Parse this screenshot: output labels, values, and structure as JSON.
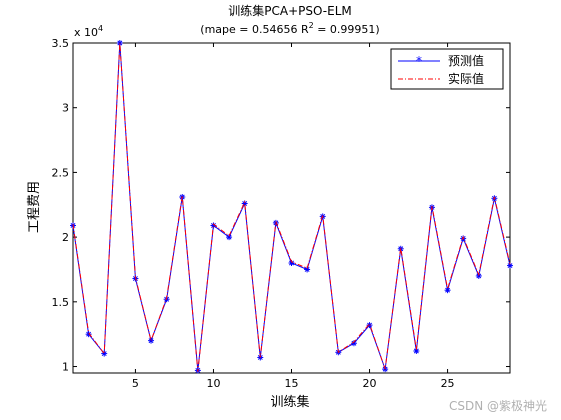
{
  "chart_data": {
    "type": "line",
    "title": "训练集PCA+PSO-ELM",
    "subtitle_prefix": "(mape = 0.54656 R",
    "subtitle_sup": "2",
    "subtitle_suffix": " = 0.99951)",
    "xlabel": "训练集",
    "ylabel": "工程费用",
    "y_exponent_prefix": "x 10",
    "y_exponent_power": "4",
    "xlim": [
      1,
      29
    ],
    "ylim": [
      0.95,
      3.5
    ],
    "xticks": [
      5,
      10,
      15,
      20,
      25
    ],
    "yticks": [
      1,
      1.5,
      2,
      2.5,
      3,
      3.5
    ],
    "ytick_labels": [
      "1",
      "1.5",
      "2",
      "2.5",
      "3",
      "3.5"
    ],
    "legend_position": "top-right",
    "x": [
      1,
      2,
      3,
      4,
      5,
      6,
      7,
      8,
      9,
      10,
      11,
      12,
      13,
      14,
      15,
      16,
      17,
      18,
      19,
      20,
      21,
      22,
      23,
      24,
      25,
      26,
      27,
      28,
      29
    ],
    "series": [
      {
        "name": "预测值",
        "color": "#0000ff",
        "marker": "star",
        "values": [
          2.09,
          1.25,
          1.1,
          3.5,
          1.68,
          1.2,
          1.52,
          2.31,
          0.97,
          2.09,
          2.0,
          2.26,
          1.07,
          2.11,
          1.8,
          1.75,
          2.16,
          1.11,
          1.18,
          1.32,
          0.98,
          1.91,
          1.12,
          2.23,
          1.59,
          1.99,
          1.7,
          2.3,
          1.78
        ]
      },
      {
        "name": "实际值",
        "color": "#ff0000",
        "marker": "none",
        "values": [
          2.1,
          1.26,
          1.1,
          3.5,
          1.69,
          1.2,
          1.53,
          2.32,
          0.96,
          2.1,
          2.01,
          2.27,
          1.07,
          2.12,
          1.81,
          1.76,
          2.17,
          1.11,
          1.19,
          1.33,
          0.98,
          1.92,
          1.13,
          2.24,
          1.6,
          2.0,
          1.71,
          2.31,
          1.79
        ]
      }
    ]
  },
  "watermark": "CSDN @紫极神光"
}
